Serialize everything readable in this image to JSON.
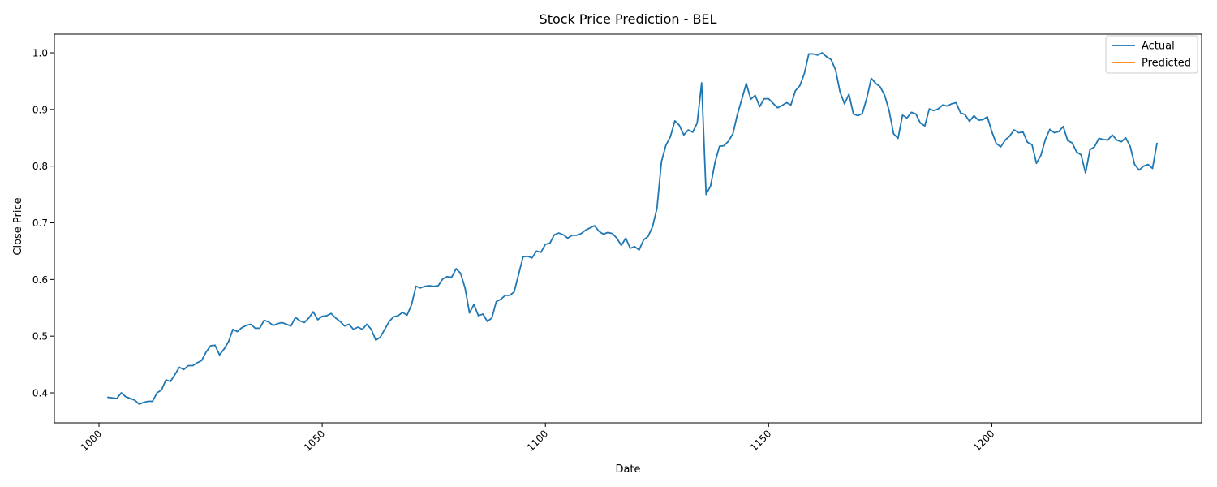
{
  "chart_data": {
    "type": "line",
    "title": "Stock Price Prediction - BEL",
    "xlabel": "Date",
    "ylabel": "Close Price",
    "xlim": [
      990,
      1247
    ],
    "ylim": [
      0.347,
      1.033
    ],
    "xticks": [
      1000,
      1050,
      1100,
      1150,
      1200
    ],
    "yticks": [
      0.4,
      0.5,
      0.6,
      0.7,
      0.8,
      0.9,
      1.0
    ],
    "xtick_labels": [
      "1000",
      "1050",
      "1100",
      "1150",
      "1200"
    ],
    "ytick_labels": [
      "0.4",
      "0.5",
      "0.6",
      "0.7",
      "0.8",
      "0.9",
      "1.0"
    ],
    "grid": false,
    "legend": {
      "position": "top-right",
      "entries": [
        "Actual",
        "Predicted"
      ]
    },
    "colors": {
      "Actual": "#1f77b4",
      "Predicted": "#ff7f0e"
    },
    "series": [
      {
        "name": "Actual",
        "x_start": 1002,
        "values": [
          0.392,
          0.391,
          0.39,
          0.4,
          0.393,
          0.39,
          0.387,
          0.38,
          0.383,
          0.385,
          0.385,
          0.4,
          0.405,
          0.423,
          0.42,
          0.432,
          0.445,
          0.441,
          0.448,
          0.448,
          0.453,
          0.457,
          0.472,
          0.483,
          0.484,
          0.467,
          0.477,
          0.49,
          0.512,
          0.508,
          0.515,
          0.519,
          0.521,
          0.514,
          0.514,
          0.528,
          0.525,
          0.519,
          0.522,
          0.524,
          0.521,
          0.518,
          0.533,
          0.527,
          0.524,
          0.532,
          0.543,
          0.529,
          0.535,
          0.536,
          0.54,
          0.532,
          0.526,
          0.518,
          0.521,
          0.512,
          0.516,
          0.512,
          0.521,
          0.512,
          0.493,
          0.498,
          0.512,
          0.526,
          0.534,
          0.536,
          0.542,
          0.537,
          0.555,
          0.588,
          0.585,
          0.588,
          0.589,
          0.588,
          0.589,
          0.601,
          0.605,
          0.604,
          0.619,
          0.611,
          0.585,
          0.541,
          0.556,
          0.536,
          0.539,
          0.526,
          0.532,
          0.561,
          0.565,
          0.572,
          0.572,
          0.578,
          0.609,
          0.64,
          0.641,
          0.638,
          0.65,
          0.648,
          0.662,
          0.664,
          0.679,
          0.682,
          0.679,
          0.673,
          0.678,
          0.678,
          0.681,
          0.687,
          0.691,
          0.695,
          0.685,
          0.68,
          0.683,
          0.681,
          0.673,
          0.66,
          0.673,
          0.655,
          0.658,
          0.652,
          0.67,
          0.676,
          0.693,
          0.726,
          0.808,
          0.837,
          0.852,
          0.88,
          0.872,
          0.855,
          0.864,
          0.86,
          0.876,
          0.947,
          0.75,
          0.765,
          0.807,
          0.835,
          0.836,
          0.844,
          0.857,
          0.891,
          0.918,
          0.946,
          0.918,
          0.925,
          0.905,
          0.919,
          0.919,
          0.911,
          0.903,
          0.907,
          0.912,
          0.908,
          0.933,
          0.942,
          0.963,
          0.998,
          0.998,
          0.996,
          1.0,
          0.993,
          0.988,
          0.97,
          0.931,
          0.91,
          0.927,
          0.892,
          0.889,
          0.893,
          0.92,
          0.955,
          0.946,
          0.94,
          0.925,
          0.898,
          0.857,
          0.849,
          0.89,
          0.885,
          0.895,
          0.892,
          0.876,
          0.871,
          0.901,
          0.898,
          0.901,
          0.908,
          0.906,
          0.91,
          0.912,
          0.894,
          0.891,
          0.879,
          0.889,
          0.881,
          0.882,
          0.887,
          0.861,
          0.84,
          0.834,
          0.846,
          0.853,
          0.864,
          0.859,
          0.86,
          0.842,
          0.838,
          0.805,
          0.819,
          0.847,
          0.865,
          0.859,
          0.861,
          0.87,
          0.845,
          0.841,
          0.825,
          0.82,
          0.788,
          0.829,
          0.834,
          0.849,
          0.847,
          0.846,
          0.855,
          0.846,
          0.843,
          0.85,
          0.835,
          0.803,
          0.793,
          0.8,
          0.803,
          0.796,
          0.84
        ]
      },
      {
        "name": "Predicted",
        "x_start": null,
        "values": []
      }
    ]
  }
}
